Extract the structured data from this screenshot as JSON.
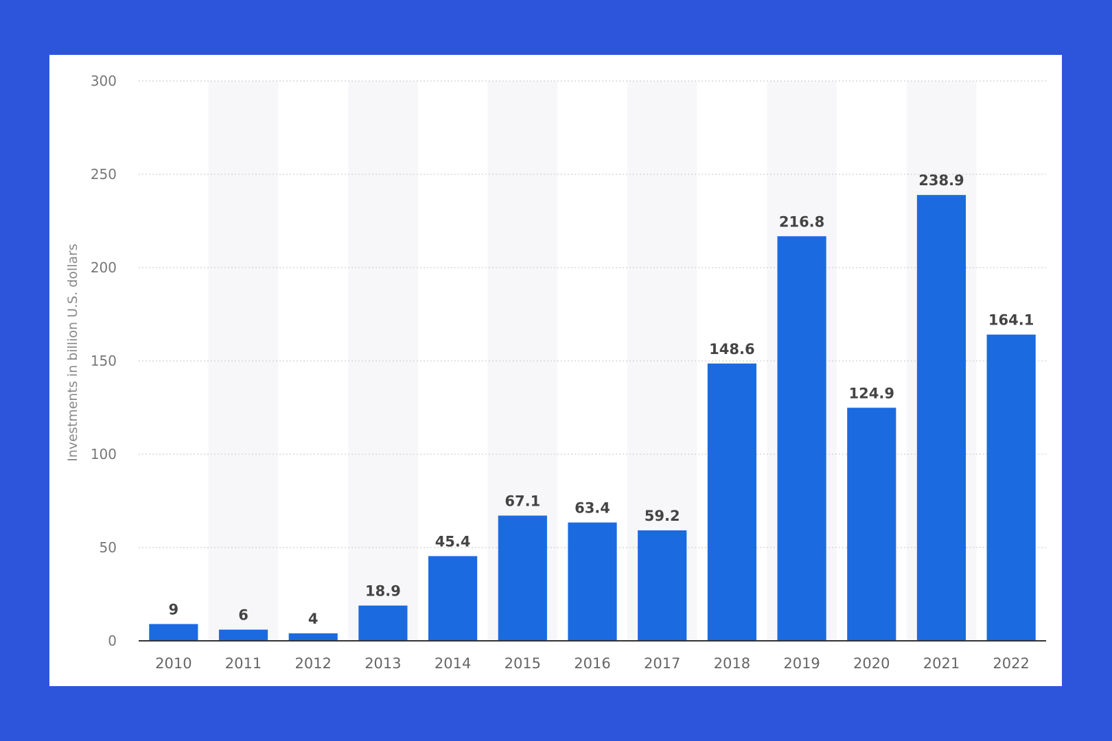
{
  "chart_data": {
    "type": "bar",
    "categories": [
      "2010",
      "2011",
      "2012",
      "2013",
      "2014",
      "2015",
      "2016",
      "2017",
      "2018",
      "2019",
      "2020",
      "2021",
      "2022"
    ],
    "values": [
      9,
      6,
      4,
      18.9,
      45.4,
      67.1,
      63.4,
      59.2,
      148.6,
      216.8,
      124.9,
      238.9,
      164.1
    ],
    "data_labels": [
      "9",
      "6",
      "4",
      "18.9",
      "45.4",
      "67.1",
      "63.4",
      "59.2",
      "148.6",
      "216.8",
      "124.9",
      "238.9",
      "164.1"
    ],
    "title": "",
    "xlabel": "",
    "ylabel": "Investments in billion U.S. dollars",
    "ylim": [
      0,
      300
    ],
    "yticks": [
      0,
      50,
      100,
      150,
      200,
      250,
      300
    ],
    "ytick_labels": [
      "0",
      "50",
      "100",
      "150",
      "200",
      "250",
      "300"
    ],
    "grid": true,
    "legend": "none",
    "colors": {
      "background": "#2d55dc",
      "panel": "#ffffff",
      "bar": "#1b6ae0",
      "alt_band": "#f7f7f9",
      "grid": "#cfcfcf",
      "axis": "#333333"
    }
  }
}
